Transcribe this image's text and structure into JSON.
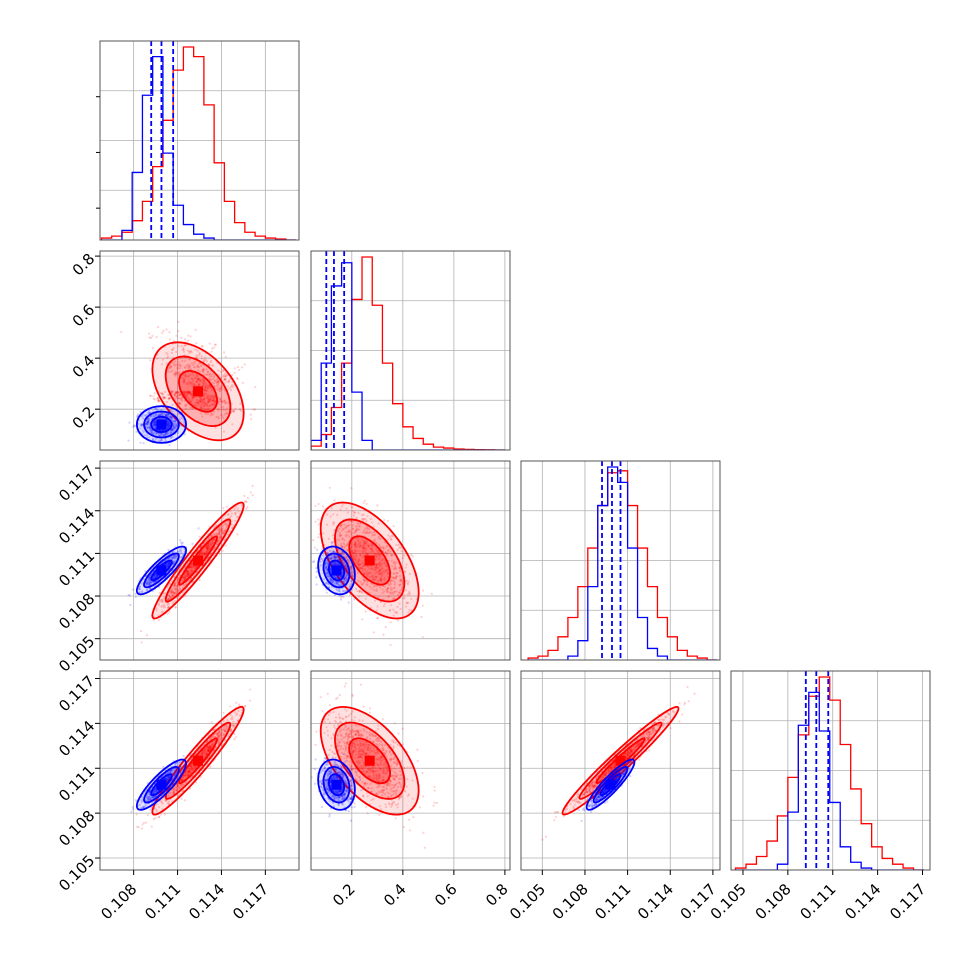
{
  "chart_data": {
    "type": "corner",
    "grid": true,
    "legend": "none",
    "colors": {
      "series_blue": "#0000ff",
      "series_red": "#ff0000"
    },
    "axis_tick_labels": {
      "p0": [
        "0.108",
        "0.111",
        "0.114",
        "0.117"
      ],
      "p1": [
        "0.2",
        "0.4",
        "0.6",
        "0.8"
      ],
      "p2": [
        "0.105",
        "0.108",
        "0.111",
        "0.114",
        "0.117"
      ],
      "p3": [
        "0.105",
        "0.108",
        "0.111",
        "0.114",
        "0.117"
      ]
    },
    "axis_ranges": {
      "p0": [
        0.1057,
        0.1193
      ],
      "p1": [
        0.04,
        0.82
      ],
      "p2": [
        0.1035,
        0.1175
      ],
      "p3": [
        0.1042,
        0.1175
      ]
    },
    "series": [
      {
        "color": "#0000ff",
        "mean": [
          0.1099,
          0.14,
          0.1098,
          0.1099
        ],
        "std": [
          0.0007,
          0.03,
          0.0007,
          0.0007
        ],
        "quantile_lines": {
          "p0": [
            0.1092,
            0.1099,
            0.1107
          ],
          "p1": [
            0.1,
            0.13,
            0.17
          ],
          "p2": [
            0.1092,
            0.1099,
            0.1105
          ],
          "p3": [
            0.1092,
            0.1099,
            0.1107
          ]
        }
      },
      {
        "color": "#ff0000",
        "mean": [
          0.1124,
          0.27,
          0.1105,
          0.1115
        ],
        "std": [
          0.0013,
          0.08,
          0.0017,
          0.0015
        ]
      }
    ],
    "histograms": {
      "p0": {
        "bin_edges": [
          0.1058,
          0.1065,
          0.1072,
          0.1079,
          0.1086,
          0.1093,
          0.11,
          0.1107,
          0.1114,
          0.1121,
          0.1128,
          0.1135,
          0.1142,
          0.1149,
          0.1156,
          0.1163,
          0.117,
          0.1177,
          0.1184,
          0.1191
        ],
        "blue": [
          0,
          0,
          0.05,
          0.35,
          0.75,
          0.95,
          0.45,
          0.18,
          0.08,
          0.03,
          0.01,
          0,
          0,
          0,
          0,
          0,
          0,
          0,
          0
        ],
        "red": [
          0.01,
          0.02,
          0.04,
          0.1,
          0.2,
          0.38,
          0.62,
          0.88,
          1.0,
          0.95,
          0.7,
          0.4,
          0.2,
          0.09,
          0.04,
          0.02,
          0.01,
          0.005,
          0
        ]
      },
      "p1": {
        "bin_edges": [
          0.04,
          0.08,
          0.12,
          0.16,
          0.2,
          0.24,
          0.28,
          0.32,
          0.36,
          0.4,
          0.44,
          0.48,
          0.52,
          0.56,
          0.6,
          0.64,
          0.68,
          0.72,
          0.76,
          0.8
        ],
        "blue": [
          0.05,
          0.45,
          0.85,
          0.97,
          0.3,
          0.05,
          0,
          0,
          0,
          0,
          0,
          0,
          0,
          0,
          0,
          0,
          0,
          0,
          0
        ],
        "red": [
          0.02,
          0.08,
          0.22,
          0.45,
          0.78,
          1.0,
          0.75,
          0.45,
          0.24,
          0.12,
          0.06,
          0.03,
          0.015,
          0.01,
          0.005,
          0.003,
          0.002,
          0.001,
          0
        ]
      },
      "p2": {
        "bin_edges": [
          0.104,
          0.1047,
          0.1054,
          0.1061,
          0.1068,
          0.1075,
          0.1082,
          0.1089,
          0.1096,
          0.1103,
          0.111,
          0.1117,
          0.1124,
          0.1131,
          0.1138,
          0.1145,
          0.1152,
          0.1159,
          0.1166,
          0.1173
        ],
        "blue": [
          0,
          0,
          0,
          0,
          0.02,
          0.1,
          0.38,
          0.8,
          1.0,
          0.92,
          0.58,
          0.22,
          0.06,
          0.02,
          0,
          0,
          0,
          0,
          0
        ],
        "red": [
          0.01,
          0.02,
          0.05,
          0.12,
          0.22,
          0.38,
          0.58,
          0.8,
          0.97,
          0.98,
          0.8,
          0.58,
          0.38,
          0.22,
          0.12,
          0.05,
          0.02,
          0.01,
          0
        ]
      },
      "p3": {
        "bin_edges": [
          0.1045,
          0.1052,
          0.1059,
          0.1066,
          0.1073,
          0.108,
          0.1087,
          0.1094,
          0.1101,
          0.1108,
          0.1115,
          0.1122,
          0.1129,
          0.1136,
          0.1143,
          0.115,
          0.1157,
          0.1164,
          0.1171
        ],
        "blue": [
          0,
          0,
          0,
          0,
          0.03,
          0.3,
          0.75,
          0.92,
          0.72,
          0.35,
          0.12,
          0.04,
          0.01,
          0,
          0,
          0,
          0,
          0
        ],
        "red": [
          0.01,
          0.03,
          0.07,
          0.15,
          0.28,
          0.48,
          0.7,
          0.9,
          1.0,
          0.88,
          0.65,
          0.42,
          0.24,
          0.12,
          0.06,
          0.03,
          0.01,
          0
        ]
      }
    }
  }
}
